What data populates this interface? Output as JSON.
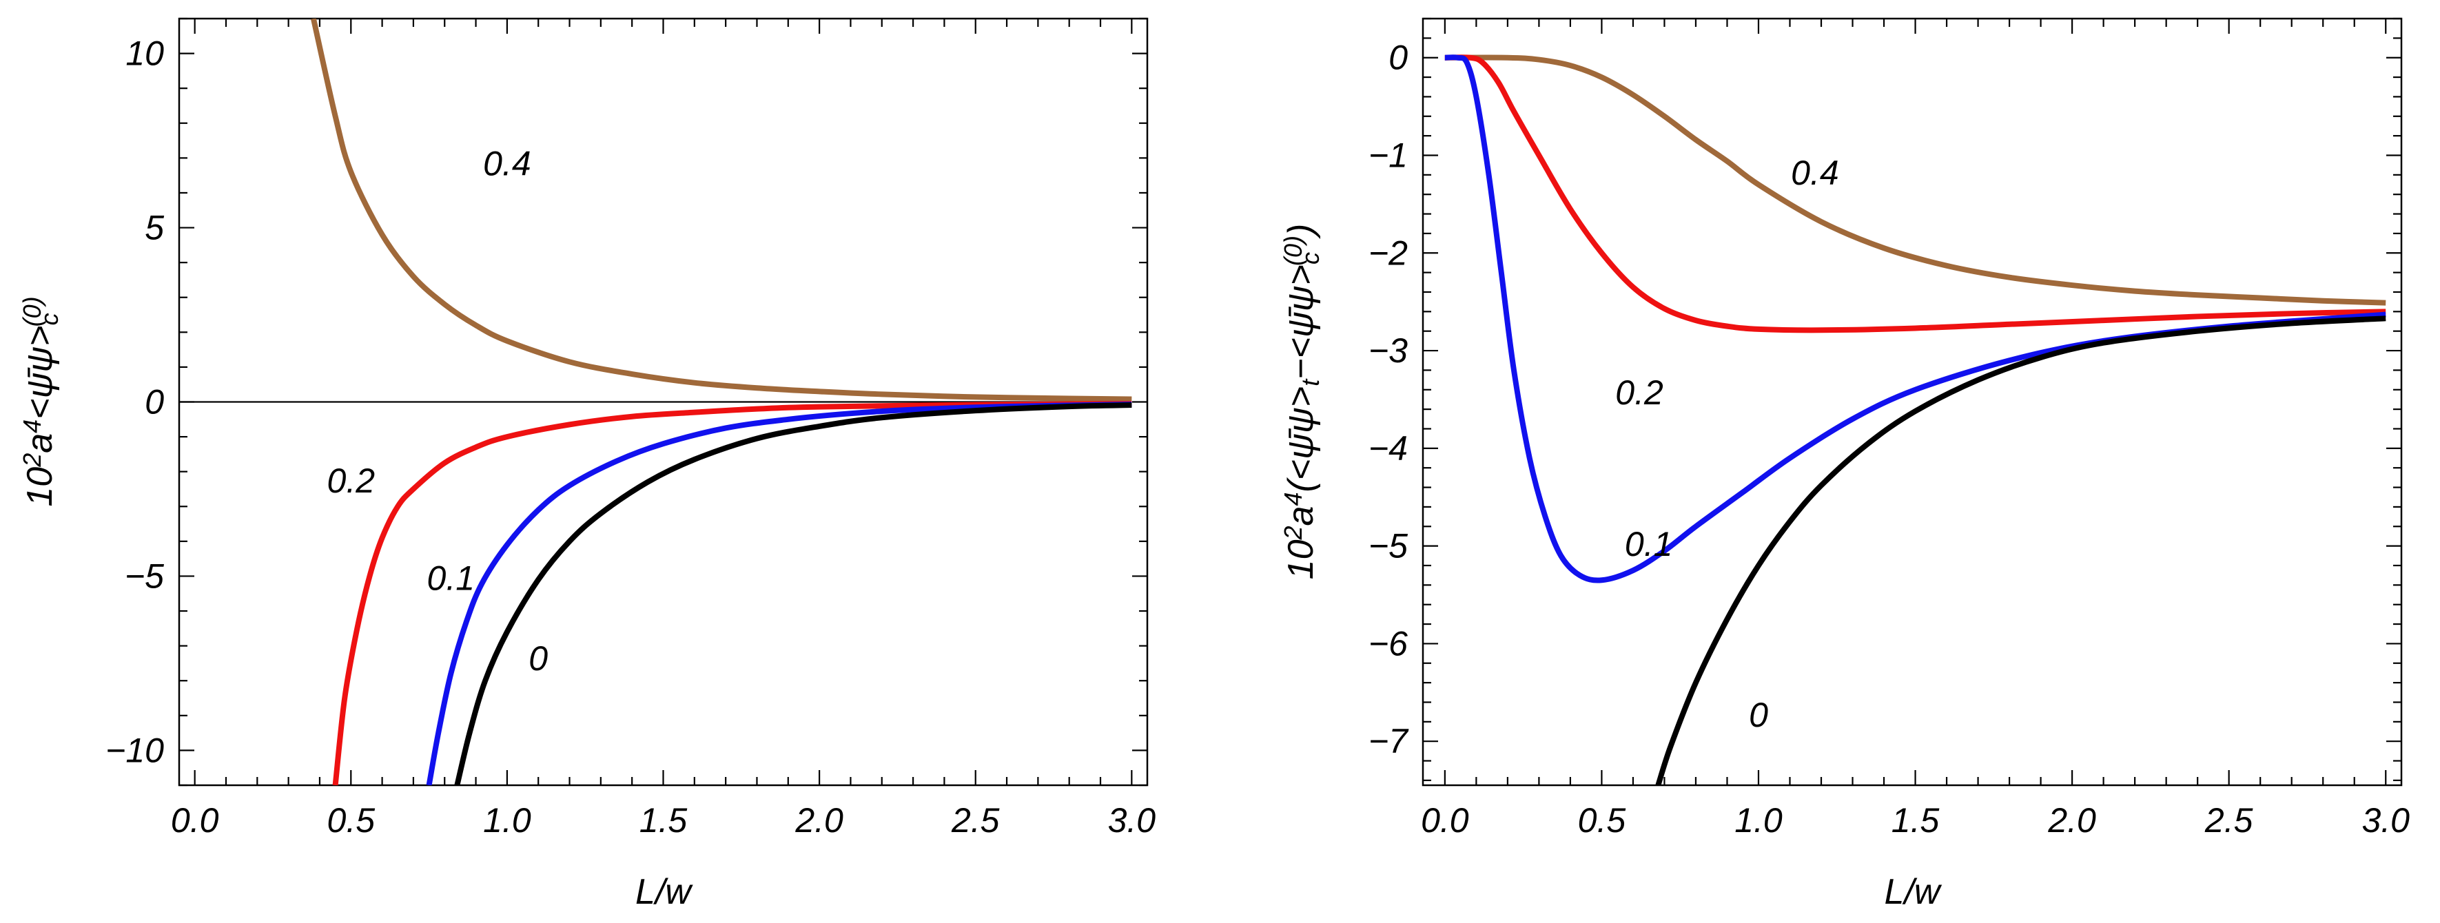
{
  "chart_data": [
    {
      "type": "line",
      "title": "",
      "xlabel": "L/w",
      "ylabel_parts": {
        "prefix": "10",
        "prefix_exp": "2",
        "a": "a",
        "a_exp": "4",
        "body": "<ψ̄ψ>",
        "sub": "c",
        "sup": "(0)"
      },
      "xlim": [
        -0.05,
        3.05
      ],
      "ylim": [
        -11.0,
        11.0
      ],
      "xticks": [
        "0.0",
        "0.5",
        "1.0",
        "1.5",
        "2.0",
        "2.5",
        "3.0"
      ],
      "xtick_values": [
        0.0,
        0.5,
        1.0,
        1.5,
        2.0,
        2.5,
        3.0
      ],
      "yticks": [
        "−10",
        "−5",
        "0",
        "5",
        "10"
      ],
      "ytick_values": [
        -10,
        -5,
        0,
        5,
        10
      ],
      "zero_line": true,
      "series": [
        {
          "name": "0.4",
          "color": "#a0693a",
          "points": [
            [
              0.38,
              11.0
            ],
            [
              0.45,
              8.2
            ],
            [
              0.5,
              6.6
            ],
            [
              0.6,
              4.8
            ],
            [
              0.7,
              3.6
            ],
            [
              0.8,
              2.8
            ],
            [
              0.9,
              2.2
            ],
            [
              1.0,
              1.75
            ],
            [
              1.2,
              1.15
            ],
            [
              1.4,
              0.8
            ],
            [
              1.6,
              0.55
            ],
            [
              1.8,
              0.4
            ],
            [
              2.0,
              0.3
            ],
            [
              2.2,
              0.22
            ],
            [
              2.5,
              0.14
            ],
            [
              2.8,
              0.1
            ],
            [
              3.0,
              0.08
            ]
          ],
          "label": "0.4",
          "label_pos": [
            1.0,
            6.5
          ]
        },
        {
          "name": "0.2",
          "color": "#ee1111",
          "points": [
            [
              0.45,
              -11.0
            ],
            [
              0.48,
              -8.5
            ],
            [
              0.52,
              -6.5
            ],
            [
              0.56,
              -5.0
            ],
            [
              0.6,
              -3.9
            ],
            [
              0.65,
              -3.0
            ],
            [
              0.7,
              -2.5
            ],
            [
              0.8,
              -1.75
            ],
            [
              0.9,
              -1.3
            ],
            [
              1.0,
              -1.0
            ],
            [
              1.2,
              -0.65
            ],
            [
              1.4,
              -0.42
            ],
            [
              1.6,
              -0.3
            ],
            [
              1.8,
              -0.2
            ],
            [
              2.0,
              -0.14
            ],
            [
              2.5,
              -0.08
            ],
            [
              3.0,
              -0.05
            ]
          ],
          "label": "0.2",
          "label_pos": [
            0.5,
            -2.6
          ]
        },
        {
          "name": "0.1",
          "color": "#1111ee",
          "points": [
            [
              0.75,
              -11.0
            ],
            [
              0.78,
              -9.5
            ],
            [
              0.82,
              -7.8
            ],
            [
              0.87,
              -6.3
            ],
            [
              0.92,
              -5.2
            ],
            [
              1.0,
              -4.1
            ],
            [
              1.1,
              -3.1
            ],
            [
              1.2,
              -2.4
            ],
            [
              1.35,
              -1.7
            ],
            [
              1.5,
              -1.2
            ],
            [
              1.7,
              -0.75
            ],
            [
              1.9,
              -0.5
            ],
            [
              2.1,
              -0.33
            ],
            [
              2.3,
              -0.22
            ],
            [
              2.6,
              -0.13
            ],
            [
              3.0,
              -0.07
            ]
          ],
          "label": "0.1",
          "label_pos": [
            0.82,
            -5.4
          ]
        },
        {
          "name": "0",
          "color": "#000000",
          "points": [
            [
              0.84,
              -11.0
            ],
            [
              0.88,
              -9.5
            ],
            [
              0.93,
              -8.0
            ],
            [
              1.0,
              -6.6
            ],
            [
              1.1,
              -5.1
            ],
            [
              1.2,
              -4.0
            ],
            [
              1.3,
              -3.2
            ],
            [
              1.45,
              -2.3
            ],
            [
              1.6,
              -1.65
            ],
            [
              1.8,
              -1.05
            ],
            [
              2.0,
              -0.7
            ],
            [
              2.2,
              -0.45
            ],
            [
              2.5,
              -0.25
            ],
            [
              2.8,
              -0.13
            ],
            [
              3.0,
              -0.09
            ]
          ],
          "label": "0",
          "label_pos": [
            1.1,
            -7.7
          ]
        }
      ]
    },
    {
      "type": "line",
      "title": "",
      "xlabel": "L/w",
      "ylabel_parts": {
        "prefix": "10",
        "prefix_exp": "2",
        "a": "a",
        "a_exp": "4",
        "open": "(",
        "body1": "<ψ̄ψ>",
        "sub1": "t",
        "minus": "−",
        "body2": "<ψ̄ψ>",
        "sub2": "c",
        "sup2": "(0)",
        "close": ")"
      },
      "xlim": [
        -0.07,
        3.05
      ],
      "ylim": [
        -7.45,
        0.4
      ],
      "xticks": [
        "0.0",
        "0.5",
        "1.0",
        "1.5",
        "2.0",
        "2.5",
        "3.0"
      ],
      "xtick_values": [
        0.0,
        0.5,
        1.0,
        1.5,
        2.0,
        2.5,
        3.0
      ],
      "yticks": [
        "0",
        "−1",
        "−2",
        "−3",
        "−4",
        "−5",
        "−6",
        "−7"
      ],
      "ytick_values": [
        0,
        -1,
        -2,
        -3,
        -4,
        -5,
        -6,
        -7
      ],
      "zero_line": false,
      "series": [
        {
          "name": "0.4",
          "color": "#a0693a",
          "points": [
            [
              0.0,
              0.0
            ],
            [
              0.2,
              0.0
            ],
            [
              0.3,
              -0.02
            ],
            [
              0.4,
              -0.08
            ],
            [
              0.5,
              -0.2
            ],
            [
              0.6,
              -0.38
            ],
            [
              0.7,
              -0.6
            ],
            [
              0.8,
              -0.84
            ],
            [
              0.9,
              -1.06
            ],
            [
              1.0,
              -1.3
            ],
            [
              1.2,
              -1.68
            ],
            [
              1.4,
              -1.95
            ],
            [
              1.6,
              -2.13
            ],
            [
              1.8,
              -2.25
            ],
            [
              2.0,
              -2.33
            ],
            [
              2.2,
              -2.39
            ],
            [
              2.4,
              -2.43
            ],
            [
              2.6,
              -2.46
            ],
            [
              2.8,
              -2.49
            ],
            [
              3.0,
              -2.51
            ]
          ],
          "label": "0.4",
          "label_pos": [
            1.18,
            -1.3
          ]
        },
        {
          "name": "0.2",
          "color": "#ee1111",
          "points": [
            [
              0.0,
              0.0
            ],
            [
              0.08,
              0.0
            ],
            [
              0.12,
              -0.05
            ],
            [
              0.17,
              -0.25
            ],
            [
              0.22,
              -0.55
            ],
            [
              0.3,
              -1.0
            ],
            [
              0.4,
              -1.55
            ],
            [
              0.5,
              -2.0
            ],
            [
              0.6,
              -2.35
            ],
            [
              0.7,
              -2.57
            ],
            [
              0.8,
              -2.69
            ],
            [
              0.9,
              -2.75
            ],
            [
              1.0,
              -2.78
            ],
            [
              1.2,
              -2.79
            ],
            [
              1.5,
              -2.77
            ],
            [
              1.8,
              -2.73
            ],
            [
              2.1,
              -2.69
            ],
            [
              2.4,
              -2.65
            ],
            [
              2.7,
              -2.62
            ],
            [
              3.0,
              -2.6
            ]
          ],
          "label": "0.2",
          "label_pos": [
            0.62,
            -3.55
          ]
        },
        {
          "name": "0.1",
          "color": "#1111ee",
          "points": [
            [
              0.0,
              0.0
            ],
            [
              0.04,
              0.0
            ],
            [
              0.07,
              -0.05
            ],
            [
              0.1,
              -0.4
            ],
            [
              0.14,
              -1.2
            ],
            [
              0.18,
              -2.2
            ],
            [
              0.22,
              -3.2
            ],
            [
              0.27,
              -4.1
            ],
            [
              0.32,
              -4.7
            ],
            [
              0.37,
              -5.1
            ],
            [
              0.43,
              -5.3
            ],
            [
              0.5,
              -5.35
            ],
            [
              0.6,
              -5.25
            ],
            [
              0.7,
              -5.05
            ],
            [
              0.8,
              -4.8
            ],
            [
              0.95,
              -4.45
            ],
            [
              1.1,
              -4.1
            ],
            [
              1.3,
              -3.7
            ],
            [
              1.5,
              -3.4
            ],
            [
              1.8,
              -3.1
            ],
            [
              2.1,
              -2.9
            ],
            [
              2.5,
              -2.75
            ],
            [
              3.0,
              -2.63
            ]
          ],
          "label": "0.1",
          "label_pos": [
            0.65,
            -5.1
          ]
        },
        {
          "name": "0",
          "color": "#000000",
          "points": [
            [
              0.68,
              -7.45
            ],
            [
              0.72,
              -7.05
            ],
            [
              0.8,
              -6.4
            ],
            [
              0.9,
              -5.75
            ],
            [
              1.0,
              -5.2
            ],
            [
              1.1,
              -4.75
            ],
            [
              1.2,
              -4.38
            ],
            [
              1.35,
              -3.95
            ],
            [
              1.5,
              -3.62
            ],
            [
              1.7,
              -3.3
            ],
            [
              1.9,
              -3.07
            ],
            [
              2.1,
              -2.92
            ],
            [
              2.4,
              -2.8
            ],
            [
              2.7,
              -2.72
            ],
            [
              3.0,
              -2.67
            ]
          ],
          "label": "0",
          "label_pos": [
            1.0,
            -6.85
          ]
        }
      ]
    }
  ]
}
